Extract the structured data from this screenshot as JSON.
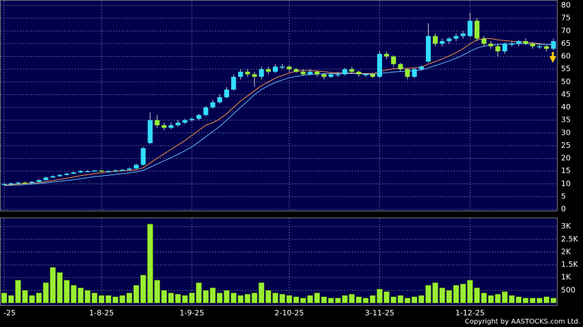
{
  "chart_data": {
    "type": "candlestick",
    "categories": [
      "-25",
      null,
      null,
      null,
      null,
      null,
      null,
      null,
      null,
      null,
      null,
      null,
      null,
      null,
      "1-8-25",
      null,
      null,
      null,
      null,
      null,
      null,
      null,
      null,
      null,
      null,
      null,
      null,
      "1-9-25",
      null,
      null,
      null,
      null,
      null,
      null,
      null,
      null,
      null,
      null,
      null,
      null,
      null,
      "2-10-25",
      null,
      null,
      null,
      null,
      null,
      null,
      null,
      null,
      null,
      null,
      null,
      null,
      "3-11-25",
      null,
      null,
      null,
      null,
      null,
      null,
      null,
      null,
      null,
      null,
      null,
      null,
      "1-12-25",
      null,
      null,
      null,
      null,
      null,
      null,
      null,
      null,
      null,
      null,
      null,
      null
    ],
    "open": [
      9.8,
      10,
      10.2,
      10.5,
      10.3,
      10.8,
      11.5,
      12.5,
      13,
      13.5,
      14,
      14.5,
      15,
      15,
      15.2,
      15,
      15,
      15.3,
      15.5,
      16,
      17.5,
      26,
      35,
      33,
      32,
      33,
      34,
      35,
      35.5,
      37,
      40,
      42,
      44,
      47,
      52,
      54,
      53,
      52,
      55,
      54,
      56,
      56,
      55,
      54,
      53,
      54,
      53,
      52,
      53,
      53,
      55,
      54,
      53,
      53,
      52,
      61,
      60,
      57,
      55,
      52,
      55,
      58,
      68,
      65,
      66,
      67,
      68,
      68,
      74,
      67,
      65,
      64,
      62,
      65,
      65,
      66,
      65,
      64,
      64,
      63
    ],
    "high": [
      10.3,
      10.5,
      10.8,
      10.8,
      11,
      11.8,
      12.8,
      13.3,
      13.8,
      14.3,
      14.8,
      15.3,
      15.4,
      15.5,
      15.5,
      15.3,
      15.6,
      15.8,
      16.4,
      17.9,
      24.5,
      38,
      37,
      34,
      34,
      35,
      35.5,
      36,
      37.5,
      40.5,
      43,
      45,
      48,
      53,
      55,
      55,
      54,
      56,
      56,
      57,
      57,
      56.5,
      55.5,
      55,
      55,
      54.5,
      53.5,
      53.5,
      54,
      55.5,
      56,
      54.5,
      53.5,
      53.5,
      62,
      62,
      60.5,
      57.5,
      55.5,
      55.5,
      56.5,
      73,
      69,
      67,
      67.5,
      69,
      70,
      77,
      75,
      68,
      66,
      65,
      65.5,
      66,
      66.5,
      67,
      65.5,
      65,
      64.5,
      67
    ],
    "low": [
      9.5,
      9.8,
      10,
      10.1,
      10.1,
      10.6,
      11.3,
      12.3,
      12.8,
      13.3,
      13.8,
      14.3,
      14.7,
      14.8,
      14.8,
      14.7,
      14.8,
      15.1,
      15.3,
      15.8,
      17.2,
      25.5,
      32,
      31,
      31.5,
      32.5,
      33.5,
      34.5,
      35,
      36.5,
      39.5,
      41.5,
      43.5,
      46.5,
      51,
      52,
      48,
      51,
      53,
      53.5,
      55,
      54,
      53.5,
      52.5,
      52.5,
      52,
      51,
      51.5,
      52,
      52.5,
      53.5,
      52,
      52,
      51.5,
      51.5,
      59,
      56,
      54,
      51,
      51.5,
      54.5,
      57.5,
      64,
      64,
      65,
      66,
      67,
      67.5,
      66,
      64,
      63,
      60,
      61,
      64,
      64,
      64.5,
      63,
      63,
      62,
      62.5
    ],
    "close": [
      10,
      10.2,
      10.5,
      10.3,
      10.8,
      11.5,
      12.5,
      13,
      13.5,
      14,
      14.5,
      15,
      15,
      15.2,
      15,
      15,
      15.3,
      15.5,
      16,
      17.5,
      24,
      35,
      33,
      32,
      33,
      34,
      35,
      35.5,
      37,
      40,
      42,
      44,
      47,
      52,
      54,
      53,
      52,
      55,
      54,
      56,
      56,
      55,
      54,
      53,
      54,
      53,
      52,
      53,
      53,
      55,
      54,
      53,
      53,
      52,
      61,
      60,
      57,
      55,
      52,
      55,
      56,
      68,
      65,
      66,
      67,
      68,
      69,
      74,
      67,
      65,
      64,
      62,
      65,
      65,
      66,
      65,
      64,
      64,
      63,
      66
    ],
    "volume": [
      400,
      300,
      900,
      500,
      300,
      400,
      800,
      1400,
      1200,
      900,
      700,
      600,
      500,
      400,
      300,
      300,
      250,
      300,
      400,
      700,
      1100,
      3100,
      900,
      500,
      400,
      350,
      300,
      400,
      800,
      500,
      600,
      400,
      500,
      400,
      300,
      350,
      400,
      800,
      500,
      400,
      350,
      300,
      250,
      200,
      300,
      400,
      250,
      200,
      200,
      300,
      350,
      250,
      200,
      300,
      550,
      450,
      250,
      300,
      200,
      250,
      300,
      700,
      800,
      600,
      500,
      700,
      750,
      900,
      600,
      400,
      300,
      350,
      450,
      300,
      250,
      200,
      200,
      200,
      250,
      200
    ],
    "ma_lines": [
      {
        "color": "#ff9944",
        "values": [
          9.5,
          9.7,
          9.9,
          10.1,
          10.3,
          10.5,
          10.9,
          11.3,
          11.7,
          12.2,
          12.7,
          13.2,
          13.6,
          14,
          14.4,
          14.7,
          14.9,
          15.1,
          15.2,
          15.5,
          16.3,
          18.2,
          20,
          21.8,
          23.5,
          25.3,
          27,
          29,
          31,
          33,
          34,
          35.5,
          37.5,
          40,
          42.5,
          44.5,
          46.5,
          48.5,
          50,
          51.5,
          52.5,
          53.5,
          54.2,
          54.5,
          54.5,
          54.3,
          54,
          53.7,
          53.5,
          53.5,
          53.5,
          53.4,
          53.3,
          53.2,
          54,
          54.7,
          55.2,
          55.4,
          55.3,
          55.5,
          55.8,
          57,
          58,
          59,
          60.2,
          61.5,
          63,
          65,
          66.5,
          67,
          67,
          66.5,
          66.2,
          66,
          65.8,
          65.5,
          65.3,
          65,
          64.7,
          64.6
        ]
      },
      {
        "color": "#66bbff",
        "values": [
          9.3,
          9.4,
          9.5,
          9.7,
          9.9,
          10.1,
          10.4,
          10.7,
          11,
          11.3,
          11.6,
          12,
          12.4,
          12.8,
          13.1,
          13.4,
          13.7,
          14,
          14.3,
          14.7,
          15.3,
          16.5,
          17.8,
          19,
          20.3,
          21.6,
          23,
          24.5,
          26.5,
          28.5,
          30.5,
          32.5,
          35,
          37.5,
          40,
          42.5,
          45,
          47,
          48.5,
          49.8,
          50.8,
          51.6,
          52.2,
          52.6,
          52.9,
          53.1,
          53.2,
          53.3,
          53.3,
          53.3,
          53.3,
          53.2,
          53.1,
          53,
          53.3,
          53.6,
          53.9,
          54.1,
          54.2,
          54.4,
          54.7,
          55.5,
          56.4,
          57.3,
          58.3,
          59.3,
          60.5,
          62,
          63.3,
          64,
          64.5,
          64.7,
          64.9,
          65,
          65,
          65,
          64.9,
          64.8,
          64.7,
          64.6
        ]
      }
    ],
    "up_color": "#33ddff",
    "down_color": "#99ee33",
    "volume_color": "#99ee33",
    "ylim": [
      0,
      80
    ],
    "yticks": [
      0,
      5,
      10,
      15,
      20,
      25,
      30,
      35,
      40,
      45,
      50,
      55,
      60,
      65,
      70,
      75,
      80
    ],
    "volume_ylim": [
      0,
      3300
    ],
    "volume_yticks": [
      500,
      {
        "value": 1000,
        "label": "1K"
      },
      {
        "value": 1500,
        "label": "1.5K"
      },
      {
        "value": 2000,
        "label": "2K"
      },
      {
        "value": 2500,
        "label": "2.5K"
      },
      {
        "value": 3000,
        "label": "3K"
      }
    ],
    "grid": true,
    "copyright": "Copyright by AASTOCKS.com Ltd."
  }
}
